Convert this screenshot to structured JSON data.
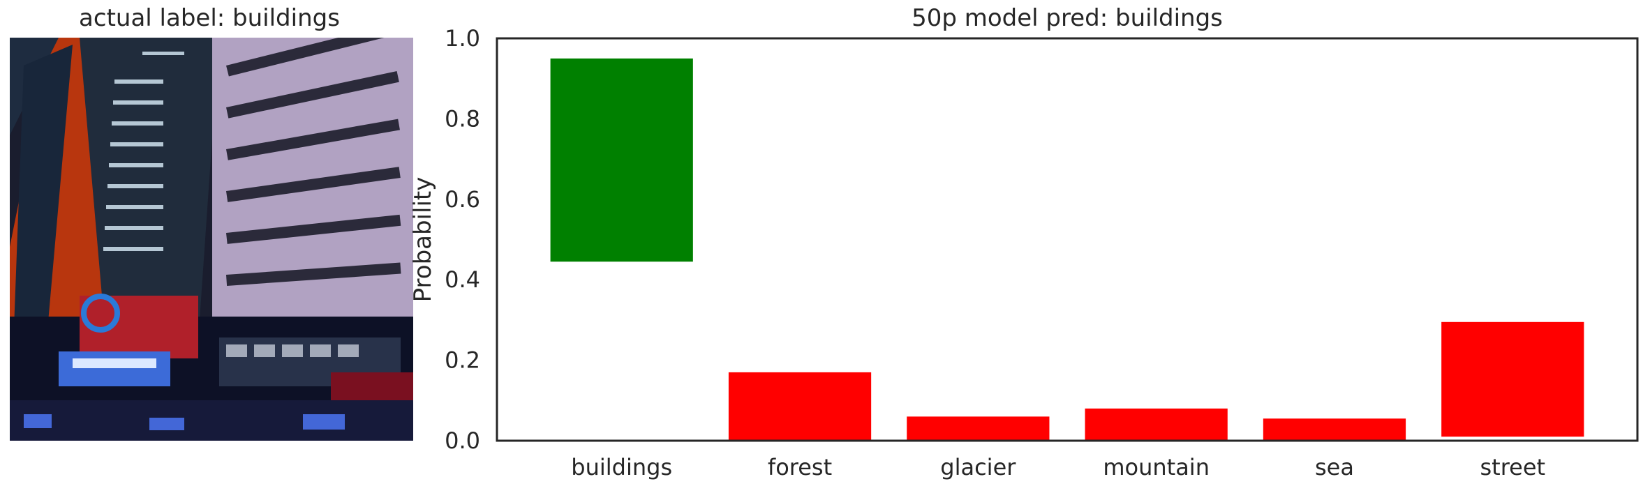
{
  "image_panel": {
    "title": "actual label: buildings"
  },
  "chart_data": {
    "type": "bar",
    "title": "50p model pred: buildings",
    "xlabel": "",
    "ylabel": "Probability",
    "ylim": [
      0,
      1.0
    ],
    "yticks": [
      "0.0",
      "0.2",
      "0.4",
      "0.6",
      "0.8",
      "1.0"
    ],
    "categories": [
      "buildings",
      "forest",
      "glacier",
      "mountain",
      "sea",
      "street"
    ],
    "bars": [
      {
        "low": 0.445,
        "high": 0.95,
        "color": "#008000"
      },
      {
        "low": 0.0,
        "high": 0.17,
        "color": "#ff0000"
      },
      {
        "low": 0.0,
        "high": 0.06,
        "color": "#ff0000"
      },
      {
        "low": 0.0,
        "high": 0.08,
        "color": "#ff0000"
      },
      {
        "low": 0.0,
        "high": 0.055,
        "color": "#ff0000"
      },
      {
        "low": 0.01,
        "high": 0.295,
        "color": "#ff0000"
      }
    ],
    "grid": false
  }
}
